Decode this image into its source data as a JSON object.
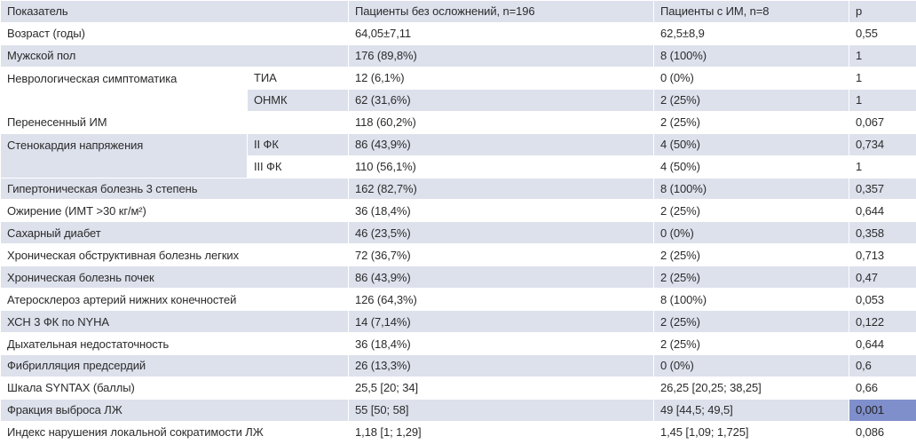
{
  "header": {
    "indicator": "Показатель",
    "group1": "Пациенты без осложнений, n=196",
    "group2": "Пациенты с ИМ, n=8",
    "p": "p"
  },
  "rows": [
    {
      "label": "Возраст (годы)",
      "g1": "64,05±7,11",
      "g2": "62,5±8,9",
      "p": "0,55"
    },
    {
      "label": "Мужской пол",
      "g1": "176 (89,8%)",
      "g2": "8 (100%)",
      "p": "1"
    },
    {
      "label": "Неврологическая симптоматика",
      "sub": "ТИА",
      "g1": "12 (6,1%)",
      "g2": "0 (0%)",
      "p": "1"
    },
    {
      "label": "",
      "sub": "ОНМК",
      "g1": "62 (31,6%)",
      "g2": "2 (25%)",
      "p": "1"
    },
    {
      "label": "Перенесенный ИМ",
      "g1": "118 (60,2%)",
      "g2": "2 (25%)",
      "p": "0,067"
    },
    {
      "label": "Стенокардия напряжения",
      "sub": "II ФК",
      "g1": "86 (43,9%)",
      "g2": "4 (50%)",
      "p": "0,734"
    },
    {
      "label": "",
      "sub": "III ФК",
      "g1": "110 (56,1%)",
      "g2": "4 (50%)",
      "p": "1"
    },
    {
      "label": "Гипертоническая болезнь 3 степень",
      "g1": "162 (82,7%)",
      "g2": "8 (100%)",
      "p": "0,357"
    },
    {
      "label": "Ожирение (ИМТ >30 кг/м²)",
      "g1": "36 (18,4%)",
      "g2": "2 (25%)",
      "p": "0,644"
    },
    {
      "label": "Сахарный диабет",
      "g1": "46 (23,5%)",
      "g2": "0 (0%)",
      "p": "0,358"
    },
    {
      "label": "Хроническая обструктивная болезнь легких",
      "g1": "72 (36,7%)",
      "g2": "2 (25%)",
      "p": "0,713"
    },
    {
      "label": "Хроническая болезнь почек",
      "g1": "86 (43,9%)",
      "g2": "2 (25%)",
      "p": "0,47"
    },
    {
      "label": "Атеросклероз артерий нижних конечностей",
      "g1": "126 (64,3%)",
      "g2": "8 (100%)",
      "p": "0,053"
    },
    {
      "label": "ХСН 3 ФК по NYHA",
      "g1": "14 (7,14%)",
      "g2": "2 (25%)",
      "p": "0,122"
    },
    {
      "label": "Дыхательная недостаточность",
      "g1": "36 (18,4%)",
      "g2": "2 (25%)",
      "p": "0,644"
    },
    {
      "label": "Фибрилляция предсердий",
      "g1": "26 (13,3%)",
      "g2": "0 (0%)",
      "p": "0,6"
    },
    {
      "label": "Шкала SYNTAX (баллы)",
      "g1": "25,5 [20; 34]",
      "g2": "26,25 [20,25; 38,25]",
      "p": "0,66"
    },
    {
      "label": "Фракция выброса ЛЖ",
      "g1": "55 [50; 58]",
      "g2": "49 [44,5; 49,5]",
      "p": "0,001"
    },
    {
      "label": "Индекс нарушения локальной сократимости ЛЖ",
      "g1": "1,18 [1; 1,29]",
      "g2": "1,45 [1,09; 1,725]",
      "p": "0,086"
    }
  ],
  "colors": {
    "row_shade": "#dde1ec",
    "highlight": "#7f8fcb",
    "text": "#2b2b2b"
  }
}
